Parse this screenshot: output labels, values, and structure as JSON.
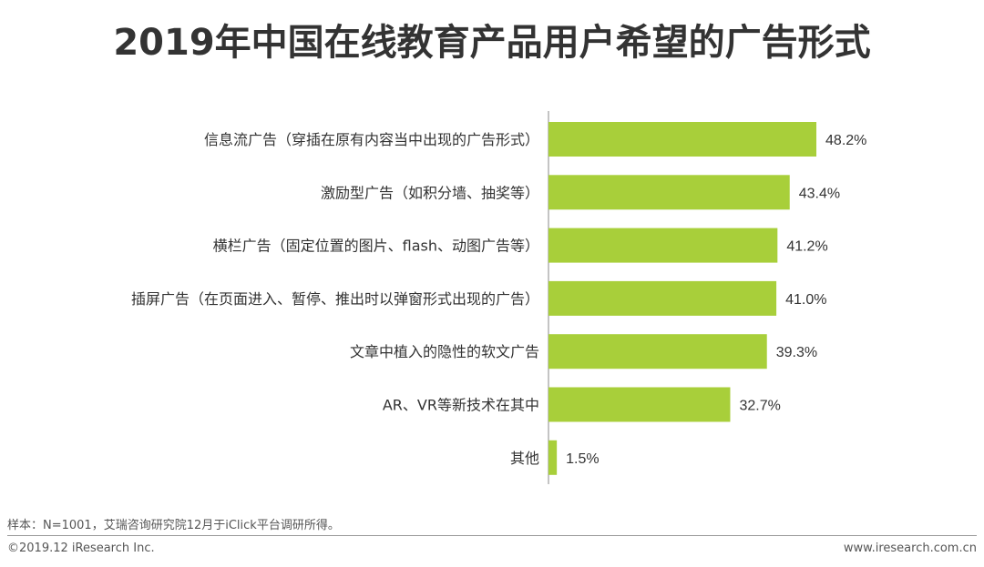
{
  "chart_data": {
    "type": "bar",
    "orientation": "horizontal",
    "title": "2019年中国在线教育产品用户希望的广告形式",
    "categories": [
      "信息流广告（穿插在原有内容当中出现的广告形式）",
      "激励型广告（如积分墙、抽奖等）",
      "横栏广告（固定位置的图片、flash、动图广告等）",
      "插屏广告（在页面进入、暂停、推出时以弹窗形式出现的广告）",
      "文章中植入的隐性的软文广告",
      "AR、VR等新技术在其中",
      "其他"
    ],
    "values": [
      48.2,
      43.4,
      41.2,
      41.0,
      39.3,
      32.7,
      1.5
    ],
    "value_labels": [
      "48.2%",
      "43.4%",
      "41.2%",
      "41.0%",
      "39.3%",
      "32.7%",
      "1.5%"
    ],
    "xlim": [
      0,
      50
    ],
    "grid": false,
    "bar_color": "#a8cf3a"
  },
  "footer": {
    "note": "样本：N=1001，艾瑞咨询研究院12月于iClick平台调研所得。",
    "copyright": "©2019.12 iResearch Inc.",
    "site": "www.iresearch.com.cn"
  }
}
